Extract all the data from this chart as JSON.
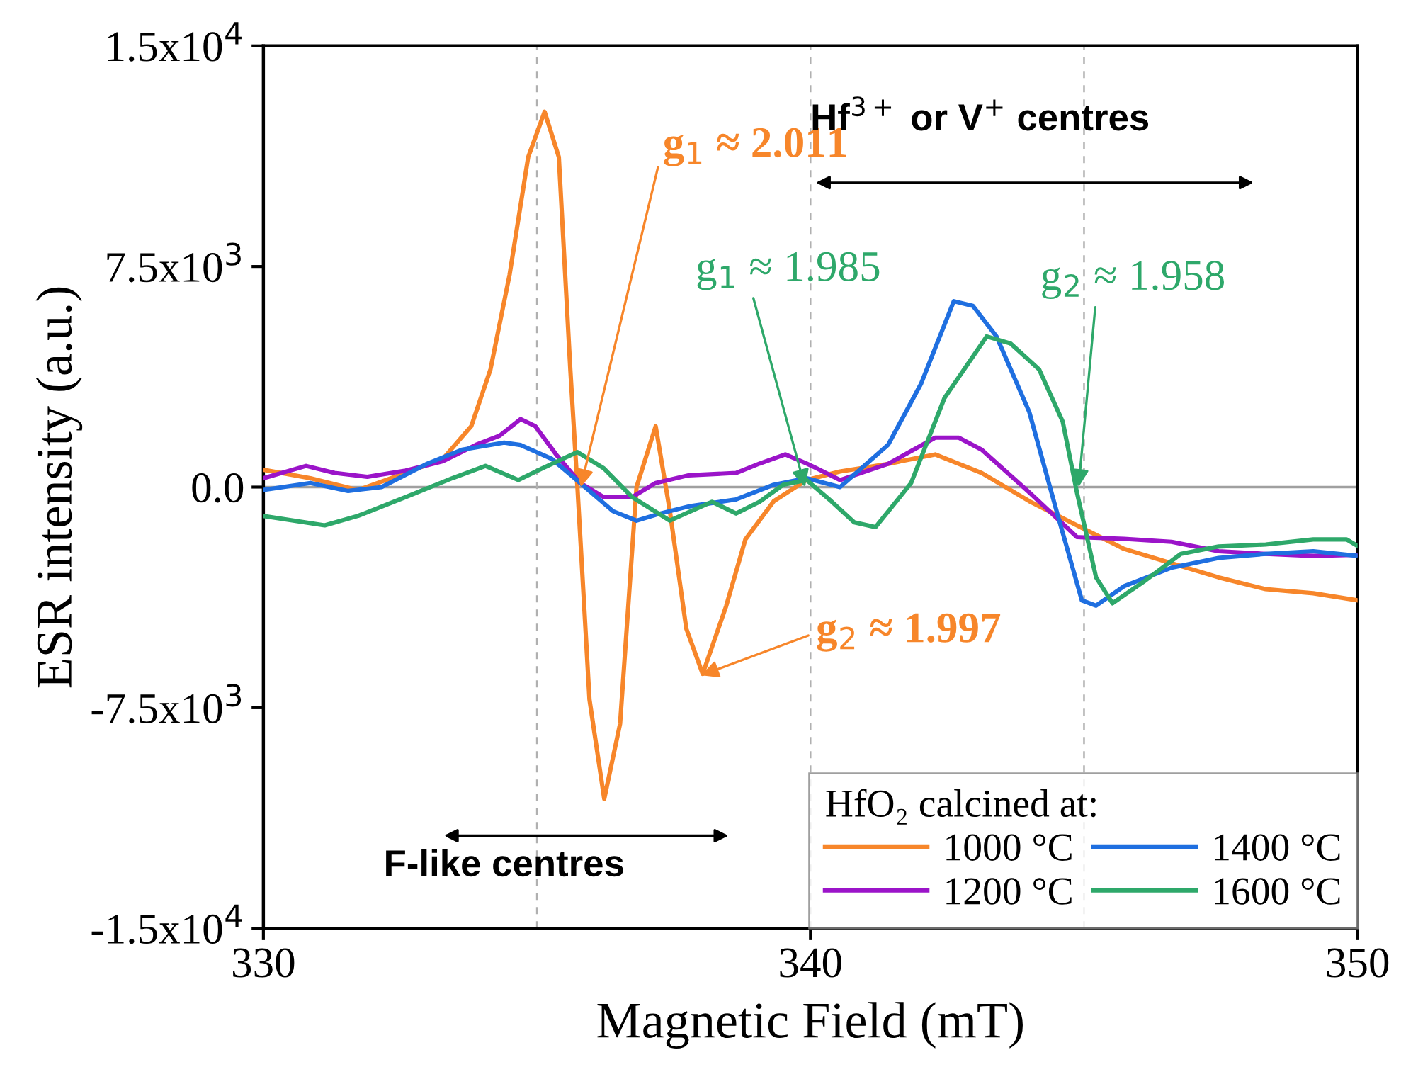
{
  "chart_data": {
    "type": "line",
    "xlabel": "Magnetic Field (mT)",
    "ylabel": "ESR intensity (a.u.)",
    "legend_title": "HfO₂ calcined at:",
    "legend": "bottom right",
    "grid": false,
    "line_style": "solid",
    "marker": "none",
    "xlim": [
      330,
      350
    ],
    "xticks": [
      330,
      340,
      350
    ],
    "ylim": [
      -15000,
      15000
    ],
    "yticks": [
      {
        "value": -15000,
        "label": "-1.5x10$^{4}$"
      },
      {
        "value": -7500,
        "label": "-7.5x10$^{3}$"
      },
      {
        "value": 0,
        "label": "0.0"
      },
      {
        "value": 7500,
        "label": "7.5x10$^{3}$"
      },
      {
        "value": 15000,
        "label": "1.5x10$^{4}$"
      }
    ],
    "ref_lines": [
      {
        "axis": "y",
        "value": 0,
        "color": "#a0a0a0",
        "line_style": "solid"
      },
      {
        "axis": "x",
        "value": 335,
        "color": "#b0b0b0",
        "line_style": "dashed"
      },
      {
        "axis": "x",
        "value": 340,
        "color": "#b0b0b0",
        "line_style": "dashed"
      },
      {
        "axis": "x",
        "value": 345,
        "color": "#b0b0b0",
        "line_style": "dashed"
      }
    ],
    "annotations": [
      {
        "text": "g$_{1}$ ≈ 2.011",
        "x": 335.8,
        "y": 0
      },
      {
        "text": "g$_{2}$ ≈ 1.997",
        "x": 338.0,
        "y": -6400
      },
      {
        "text": "g$_{1}$ ≈ 1.985",
        "x": 339.9,
        "y": 0
      },
      {
        "text": "g$_{2}$ ≈ 1.958",
        "x": 344.9,
        "y": 0
      },
      "F-like centres",
      "Hf$^{3+}$ or V$^{+}$ centres"
    ],
    "series": [
      {
        "name": "1000 °C",
        "color": "#f7862a",
        "x": [
          330,
          330.86,
          331.73,
          332.6,
          333.28,
          333.8,
          334.15,
          334.5,
          334.84,
          335.14,
          335.4,
          335.61,
          335.74,
          335.96,
          336.23,
          336.52,
          336.82,
          337.17,
          337.43,
          337.73,
          338.03,
          338.46,
          338.81,
          339.33,
          339.93,
          340.54,
          341.42,
          342.28,
          343.13,
          344.0,
          344.87,
          345.73,
          346.6,
          347.46,
          348.32,
          349.19,
          350
        ],
        "values": [
          590,
          300,
          -100,
          480,
          960,
          2070,
          4000,
          7220,
          11220,
          12760,
          11220,
          4000,
          0,
          -7220,
          -10600,
          -8040,
          0,
          2070,
          -820,
          -4810,
          -6350,
          -4040,
          -1780,
          -480,
          240,
          530,
          790,
          1110,
          480,
          -480,
          -1300,
          -2100,
          -2590,
          -3070,
          -3470,
          -3610,
          -3850
        ]
      },
      {
        "name": "1200 °C",
        "color": "#9b14c9",
        "x": [
          330,
          330.78,
          331.3,
          331.9,
          332.6,
          333.28,
          333.89,
          334.32,
          334.7,
          334.97,
          335.35,
          335.79,
          336.22,
          336.74,
          337.17,
          337.77,
          338.64,
          339.07,
          339.54,
          339.93,
          340.12,
          340.54,
          341.42,
          342.28,
          342.71,
          343.13,
          344.0,
          344.87,
          345.73,
          346.6,
          347.46,
          348.32,
          349.19,
          350
        ],
        "values": [
          300,
          720,
          480,
          350,
          560,
          880,
          1440,
          1750,
          2310,
          2070,
          1110,
          140,
          -340,
          -340,
          140,
          400,
          480,
          800,
          1110,
          800,
          630,
          240,
          790,
          1680,
          1680,
          1270,
          -180,
          -1700,
          -1760,
          -1860,
          -2180,
          -2270,
          -2340,
          -2300
        ]
      },
      {
        "name": "1400 °C",
        "color": "#1f6fe0",
        "x": [
          330,
          330.86,
          331.55,
          332.16,
          333.0,
          333.63,
          334.4,
          334.7,
          335.27,
          335.79,
          336.39,
          336.82,
          337.25,
          337.77,
          338.64,
          339.33,
          339.93,
          340.54,
          341.42,
          342.02,
          342.62,
          342.97,
          343.4,
          344.0,
          344.52,
          344.96,
          345.22,
          345.73,
          346.6,
          347.46,
          348.32,
          349.19,
          350
        ],
        "values": [
          -100,
          140,
          -130,
          0,
          800,
          1270,
          1510,
          1430,
          960,
          140,
          -820,
          -1140,
          -900,
          -660,
          -420,
          80,
          300,
          0,
          1440,
          3510,
          6320,
          6160,
          5120,
          2550,
          -960,
          -3850,
          -4030,
          -3370,
          -2740,
          -2410,
          -2270,
          -2180,
          -2340
        ]
      },
      {
        "name": "1600 °C",
        "color": "#2ea86a",
        "x": [
          330,
          331.12,
          331.73,
          332.6,
          333.45,
          334.06,
          334.66,
          335.1,
          335.74,
          336.22,
          336.74,
          337.43,
          338.2,
          338.64,
          339.07,
          339.5,
          339.93,
          340.38,
          340.8,
          341.19,
          341.84,
          342.45,
          343.22,
          343.66,
          344.18,
          344.61,
          344.87,
          345.22,
          345.52,
          346.08,
          346.77,
          347.46,
          348.32,
          349.19,
          349.8,
          350
        ],
        "values": [
          -980,
          -1300,
          -980,
          -340,
          300,
          720,
          240,
          640,
          1190,
          640,
          -340,
          -1140,
          -500,
          -900,
          -500,
          80,
          240,
          -480,
          -1200,
          -1360,
          140,
          3030,
          5120,
          4880,
          4000,
          2230,
          -180,
          -3070,
          -3950,
          -3230,
          -2270,
          -2020,
          -1950,
          -1780,
          -1780,
          -2000
        ]
      }
    ]
  }
}
